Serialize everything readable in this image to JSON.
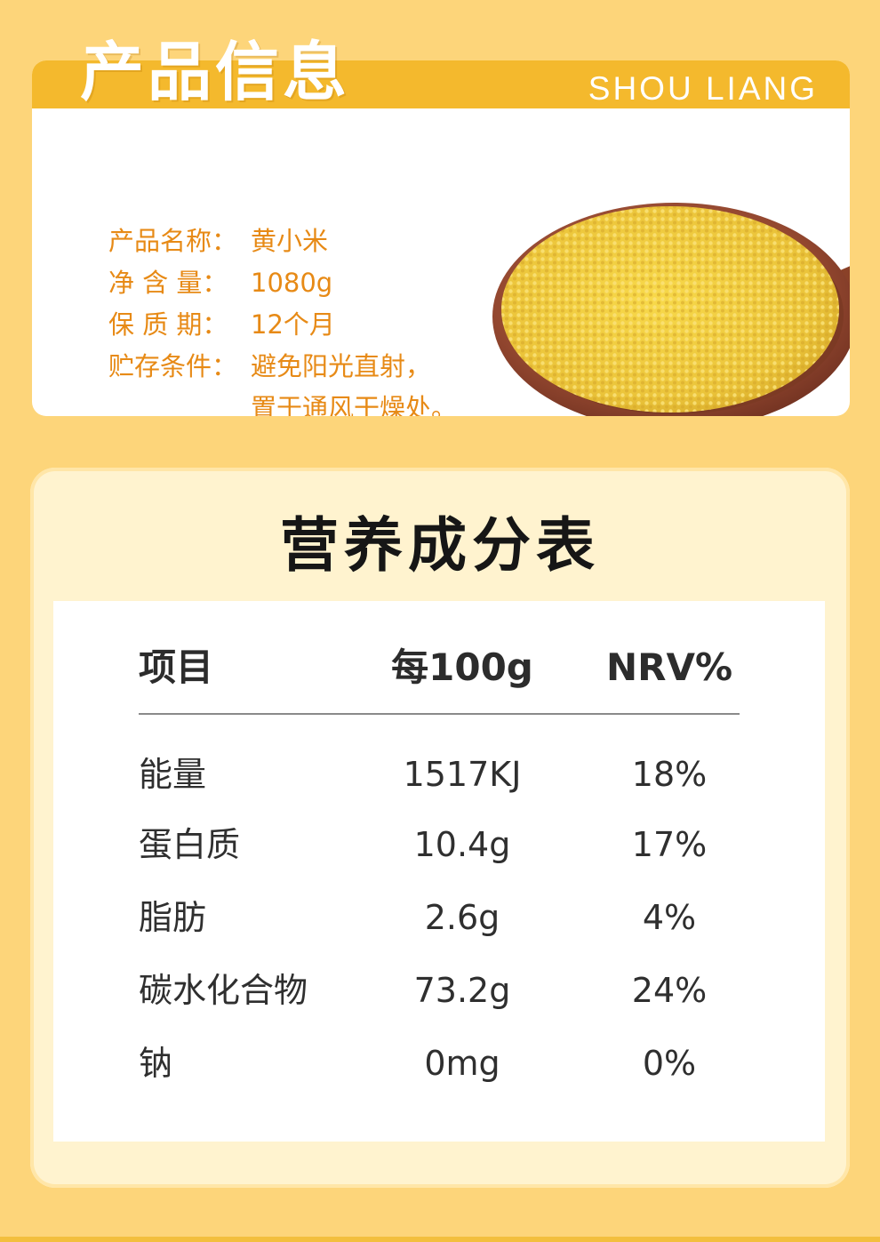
{
  "header": {
    "title": "产品信息",
    "subtitle": "SHOU LIANG"
  },
  "product": [
    {
      "label": "产品名称：",
      "value": "黄小米"
    },
    {
      "label": "净 含 量：",
      "value": "1080g"
    },
    {
      "label": "保 质 期：",
      "value": "12个月"
    },
    {
      "label": "贮存条件：",
      "value": "避免阳光直射，"
    },
    {
      "label": "",
      "value": "置于通风干燥处。"
    }
  ],
  "nutrition": {
    "title": "营养成分表",
    "columns": [
      "项目",
      "每100g",
      "NRV%"
    ],
    "rows": [
      [
        "能量",
        "1517KJ",
        "18%"
      ],
      [
        "蛋白质",
        "10.4g",
        "17%"
      ],
      [
        "脂肪",
        "2.6g",
        "4%"
      ],
      [
        "碳水化合物",
        "73.2g",
        "24%"
      ],
      [
        "钠",
        "0mg",
        "0%"
      ]
    ]
  },
  "colors": {
    "accent": "#f4b92d",
    "background": "#fdd57a",
    "info_text": "#e78a16"
  }
}
